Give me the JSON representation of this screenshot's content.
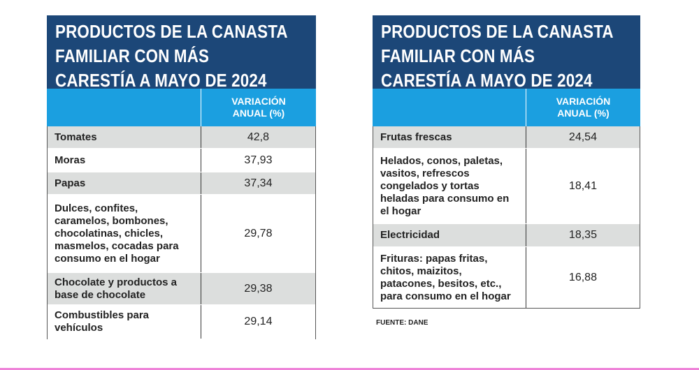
{
  "tables": [
    {
      "title": [
        "PRODUCTOS DE LA CANASTA",
        "FAMILIAR CON MÁS",
        "CARESTÍA A MAYO DE 2024"
      ],
      "column_header": "VARIACIÓN ANUAL (%)",
      "rows": [
        {
          "product": "Tomates",
          "value": "42,8"
        },
        {
          "product": "Moras",
          "value": "37,93"
        },
        {
          "product": "Papas",
          "value": "37,34"
        },
        {
          "product": "Dulces, confites, caramelos, bombones, chocolatinas, chicles, masmelos, cocadas para consumo en el hogar",
          "value": "29,78"
        },
        {
          "product": "Chocolate y productos a base de chocolate",
          "value": "29,38"
        },
        {
          "product": "Combustibles para vehículos",
          "value": "29,14"
        }
      ]
    },
    {
      "title": [
        "PRODUCTOS DE LA CANASTA",
        "FAMILIAR CON MÁS",
        "CARESTÍA A MAYO DE 2024"
      ],
      "column_header": "VARIACIÓN ANUAL (%)",
      "rows": [
        {
          "product": "Frutas frescas",
          "value": "24,54"
        },
        {
          "product": "Helados, conos, paletas, vasitos, refrescos congelados y tortas heladas para consumo en el hogar",
          "value": "18,41"
        },
        {
          "product": "Electricidad",
          "value": "18,35"
        },
        {
          "product": "Frituras: papas fritas, chitos, maizitos, patacones, besitos, etc., para consumo en el hogar",
          "value": "16,88"
        }
      ]
    }
  ],
  "source": "FUENTE: DANE",
  "colors": {
    "title_bg": "#1c4778",
    "header_bg": "#1b9fe0",
    "stripe": "#dcdedd",
    "accent_line": "#ee82d8"
  }
}
